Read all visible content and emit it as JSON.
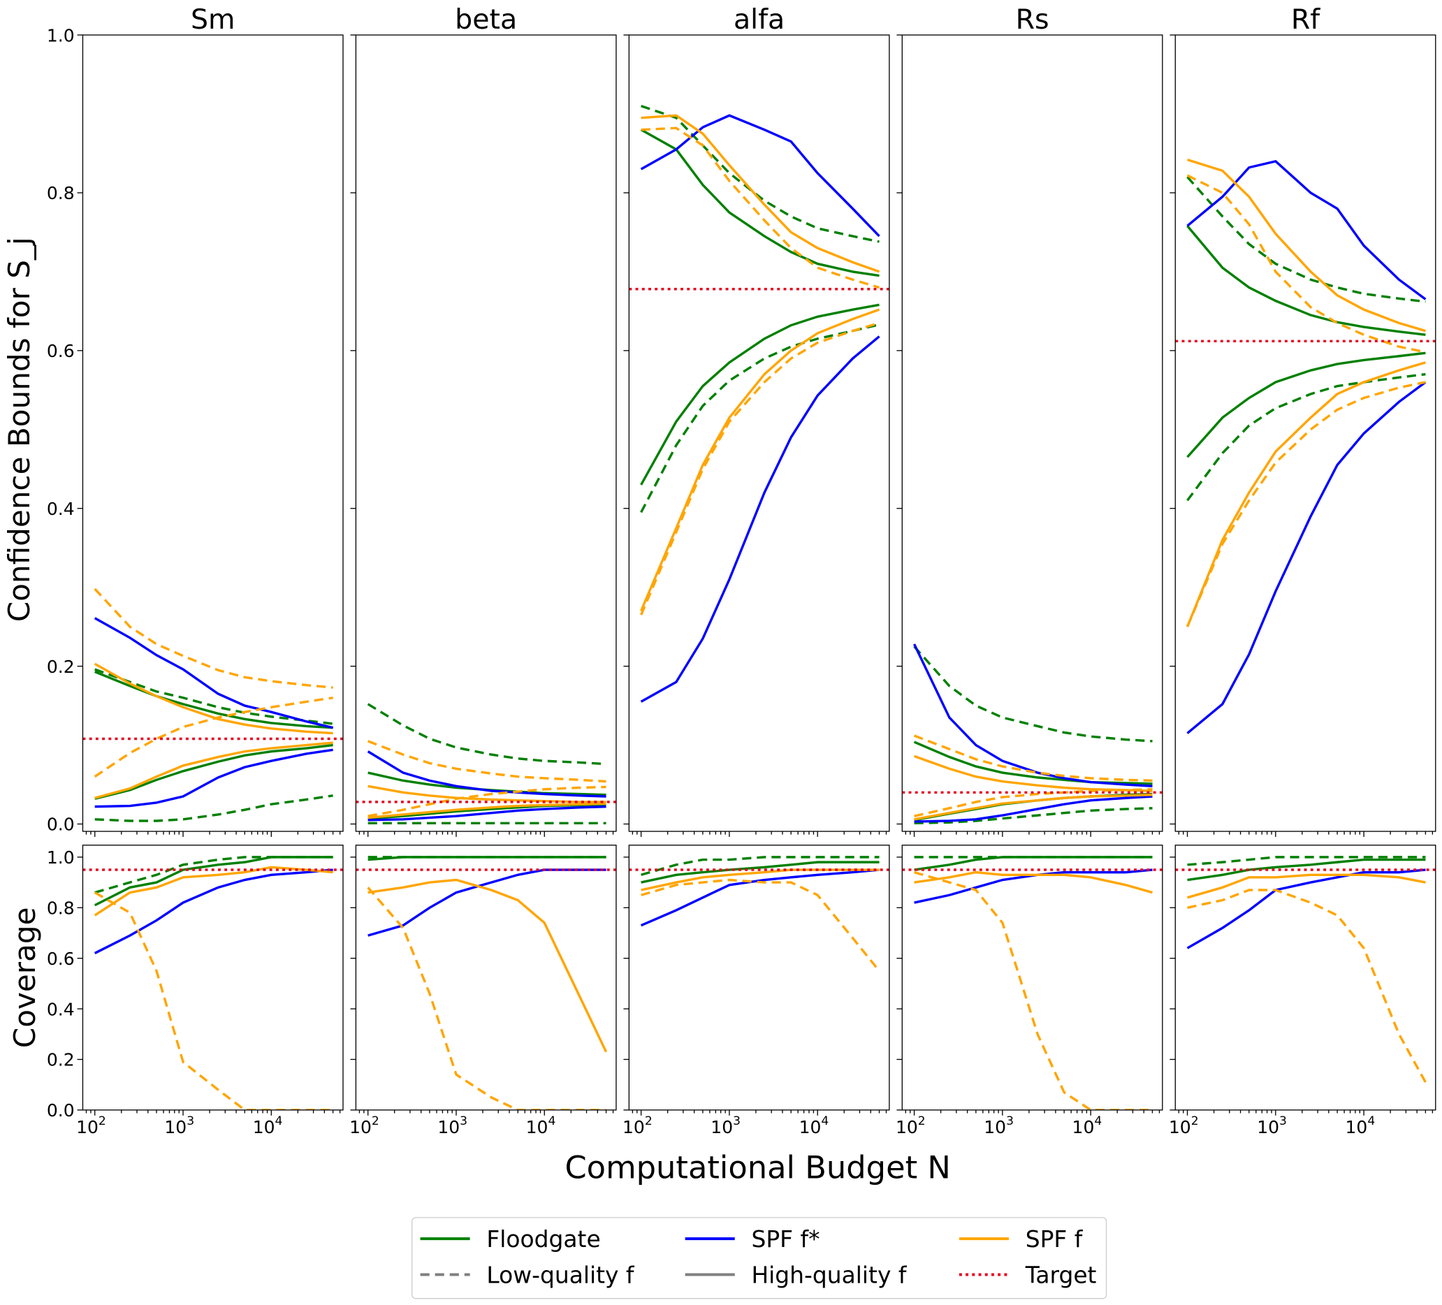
{
  "chart_data": {
    "type": "line",
    "xlabel": "Computational Budget N",
    "ylabel_top": "Confidence Bounds for S_j",
    "ylabel_bottom": "Coverage",
    "xscale": "log",
    "x": [
      100,
      250,
      500,
      1000,
      2500,
      5000,
      10000,
      25000,
      50000
    ],
    "xlim": [
      73,
      65000
    ],
    "xticks": [
      {
        "base": "10",
        "exp": "2"
      },
      {
        "base": "10",
        "exp": "3"
      },
      {
        "base": "10",
        "exp": "4"
      }
    ],
    "ylim_top": [
      0,
      1.0
    ],
    "yticks_top": [
      "0.0",
      "0.2",
      "0.4",
      "0.6",
      "0.8",
      "1.0"
    ],
    "ylim_bottom": [
      0,
      1.0
    ],
    "yticks_bottom": [
      "0.0",
      "0.2",
      "0.4",
      "0.6",
      "0.8",
      "1.0"
    ],
    "legend": {
      "placement": "bottom-center",
      "entries": [
        {
          "label": "Floodgate",
          "color": "#008000",
          "style": "solid"
        },
        {
          "label": "SPF f*",
          "color": "#0000ff",
          "style": "solid"
        },
        {
          "label": "SPF f",
          "color": "#ffa500",
          "style": "solid"
        },
        {
          "label": "Low-quality f",
          "color": "#808080",
          "style": "dashed"
        },
        {
          "label": "High-quality f",
          "color": "#808080",
          "style": "solid"
        },
        {
          "label": "Target",
          "color": "#e8001c",
          "style": "dotted"
        }
      ]
    },
    "series_styles": {
      "floodgate_high": {
        "color": "#008000",
        "dash": "solid"
      },
      "floodgate_low": {
        "color": "#008000",
        "dash": "dashed"
      },
      "spf_star_high": {
        "color": "#0000ff",
        "dash": "solid"
      },
      "spf_f_high": {
        "color": "#ffa500",
        "dash": "solid"
      },
      "spf_f_low": {
        "color": "#ffa500",
        "dash": "dashed"
      }
    },
    "target_coverage": 0.95,
    "panels": [
      {
        "title": "Sm",
        "target": 0.108,
        "bounds": {
          "floodgate_high": {
            "lower": [
              0.032,
              0.043,
              0.056,
              0.067,
              0.079,
              0.087,
              0.092,
              0.096,
              0.1
            ],
            "upper": [
              0.193,
              0.175,
              0.162,
              0.152,
              0.14,
              0.133,
              0.128,
              0.124,
              0.122
            ]
          },
          "floodgate_low": {
            "lower": [
              0.006,
              0.004,
              0.004,
              0.006,
              0.012,
              0.018,
              0.025,
              0.031,
              0.036
            ],
            "upper": [
              0.196,
              0.18,
              0.168,
              0.16,
              0.148,
              0.141,
              0.136,
              0.131,
              0.127
            ]
          },
          "spf_star_high": {
            "lower": [
              0.022,
              0.023,
              0.027,
              0.035,
              0.059,
              0.072,
              0.08,
              0.089,
              0.094
            ],
            "upper": [
              0.261,
              0.236,
              0.214,
              0.196,
              0.165,
              0.15,
              0.142,
              0.13,
              0.122
            ]
          },
          "spf_f_high": {
            "lower": [
              0.033,
              0.045,
              0.06,
              0.074,
              0.085,
              0.092,
              0.096,
              0.1,
              0.103
            ],
            "upper": [
              0.203,
              0.178,
              0.162,
              0.148,
              0.133,
              0.126,
              0.121,
              0.117,
              0.115
            ]
          },
          "spf_f_low": {
            "lower": [
              0.06,
              0.09,
              0.108,
              0.123,
              0.135,
              0.142,
              0.148,
              0.155,
              0.16
            ],
            "upper": [
              0.298,
              0.25,
              0.228,
              0.213,
              0.195,
              0.186,
              0.181,
              0.176,
              0.173
            ]
          }
        },
        "coverage": {
          "floodgate_high": [
            0.81,
            0.88,
            0.9,
            0.95,
            0.97,
            0.98,
            1.0,
            1.0,
            1.0
          ],
          "floodgate_low": [
            0.86,
            0.9,
            0.93,
            0.97,
            0.99,
            1.0,
            1.0,
            1.0,
            1.0
          ],
          "spf_star_high": [
            0.62,
            0.69,
            0.75,
            0.82,
            0.88,
            0.91,
            0.93,
            0.94,
            0.95
          ],
          "spf_f_high": [
            0.77,
            0.86,
            0.88,
            0.92,
            0.93,
            0.94,
            0.96,
            0.95,
            0.94
          ],
          "spf_f_low": [
            0.86,
            0.78,
            0.55,
            0.19,
            0.08,
            0.0,
            0.0,
            0.0,
            0.0
          ]
        }
      },
      {
        "title": "beta",
        "target": 0.028,
        "bounds": {
          "floodgate_high": {
            "lower": [
              0.007,
              0.01,
              0.013,
              0.016,
              0.019,
              0.021,
              0.023,
              0.024,
              0.025
            ],
            "upper": [
              0.065,
              0.055,
              0.05,
              0.046,
              0.043,
              0.041,
              0.039,
              0.038,
              0.037
            ]
          },
          "floodgate_low": {
            "lower": [
              0.001,
              0.001,
              0.001,
              0.001,
              0.001,
              0.001,
              0.001,
              0.001,
              0.001
            ],
            "upper": [
              0.152,
              0.125,
              0.108,
              0.097,
              0.088,
              0.083,
              0.08,
              0.078,
              0.076
            ]
          },
          "spf_star_high": {
            "lower": [
              0.005,
              0.006,
              0.008,
              0.01,
              0.014,
              0.017,
              0.019,
              0.021,
              0.022
            ],
            "upper": [
              0.092,
              0.065,
              0.055,
              0.048,
              0.042,
              0.04,
              0.038,
              0.036,
              0.035
            ]
          },
          "spf_f_high": {
            "lower": [
              0.008,
              0.012,
              0.015,
              0.018,
              0.021,
              0.023,
              0.024,
              0.025,
              0.026
            ],
            "upper": [
              0.048,
              0.04,
              0.036,
              0.033,
              0.031,
              0.03,
              0.029,
              0.028,
              0.028
            ]
          },
          "spf_f_low": {
            "lower": [
              0.01,
              0.018,
              0.025,
              0.032,
              0.038,
              0.041,
              0.044,
              0.046,
              0.047
            ],
            "upper": [
              0.105,
              0.088,
              0.077,
              0.07,
              0.064,
              0.06,
              0.058,
              0.056,
              0.054
            ]
          }
        },
        "coverage": {
          "floodgate_high": [
            0.99,
            1.0,
            1.0,
            1.0,
            1.0,
            1.0,
            1.0,
            1.0,
            1.0
          ],
          "floodgate_low": [
            1.0,
            1.0,
            1.0,
            1.0,
            1.0,
            1.0,
            1.0,
            1.0,
            1.0
          ],
          "spf_star_high": [
            0.69,
            0.73,
            0.8,
            0.86,
            0.9,
            0.93,
            0.95,
            0.95,
            0.95
          ],
          "spf_f_high": [
            0.86,
            0.88,
            0.9,
            0.91,
            0.87,
            0.83,
            0.74,
            0.45,
            0.23
          ],
          "spf_f_low": [
            0.88,
            0.72,
            0.46,
            0.14,
            0.05,
            0.0,
            0.0,
            0.0,
            0.0
          ]
        }
      },
      {
        "title": "alfa",
        "target": 0.678,
        "bounds": {
          "floodgate_high": {
            "lower": [
              0.43,
              0.51,
              0.555,
              0.585,
              0.615,
              0.632,
              0.643,
              0.652,
              0.658
            ],
            "upper": [
              0.88,
              0.855,
              0.81,
              0.775,
              0.745,
              0.725,
              0.71,
              0.7,
              0.695
            ]
          },
          "floodgate_low": {
            "lower": [
              0.395,
              0.48,
              0.53,
              0.562,
              0.59,
              0.605,
              0.615,
              0.625,
              0.633
            ],
            "upper": [
              0.91,
              0.895,
              0.86,
              0.825,
              0.79,
              0.77,
              0.755,
              0.745,
              0.738
            ]
          },
          "spf_star_high": {
            "lower": [
              0.155,
              0.18,
              0.235,
              0.31,
              0.42,
              0.49,
              0.543,
              0.59,
              0.618
            ],
            "upper": [
              0.83,
              0.855,
              0.883,
              0.898,
              0.88,
              0.865,
              0.825,
              0.78,
              0.745
            ]
          },
          "spf_f_high": {
            "lower": [
              0.27,
              0.375,
              0.455,
              0.515,
              0.57,
              0.6,
              0.622,
              0.64,
              0.652
            ],
            "upper": [
              0.895,
              0.898,
              0.875,
              0.835,
              0.785,
              0.75,
              0.73,
              0.712,
              0.7
            ]
          },
          "spf_f_low": {
            "lower": [
              0.265,
              0.37,
              0.45,
              0.51,
              0.56,
              0.59,
              0.61,
              0.625,
              0.635
            ],
            "upper": [
              0.88,
              0.882,
              0.86,
              0.815,
              0.765,
              0.73,
              0.705,
              0.69,
              0.68
            ]
          }
        },
        "coverage": {
          "floodgate_high": [
            0.9,
            0.93,
            0.94,
            0.95,
            0.96,
            0.97,
            0.98,
            0.98,
            0.98
          ],
          "floodgate_low": [
            0.93,
            0.97,
            0.99,
            0.99,
            1.0,
            1.0,
            1.0,
            1.0,
            1.0
          ],
          "spf_star_high": [
            0.73,
            0.79,
            0.84,
            0.89,
            0.91,
            0.92,
            0.93,
            0.94,
            0.95
          ],
          "spf_f_high": [
            0.87,
            0.9,
            0.92,
            0.93,
            0.94,
            0.95,
            0.95,
            0.95,
            0.95
          ],
          "spf_f_low": [
            0.85,
            0.89,
            0.9,
            0.91,
            0.9,
            0.9,
            0.85,
            0.68,
            0.55
          ]
        }
      },
      {
        "title": "Rs",
        "target": 0.04,
        "bounds": {
          "floodgate_high": {
            "lower": [
              0.005,
              0.013,
              0.019,
              0.025,
              0.03,
              0.033,
              0.035,
              0.037,
              0.038
            ],
            "upper": [
              0.104,
              0.085,
              0.073,
              0.065,
              0.059,
              0.056,
              0.053,
              0.052,
              0.051
            ]
          },
          "floodgate_low": {
            "lower": [
              0.001,
              0.002,
              0.004,
              0.007,
              0.011,
              0.014,
              0.017,
              0.019,
              0.02
            ],
            "upper": [
              0.225,
              0.175,
              0.15,
              0.135,
              0.124,
              0.116,
              0.111,
              0.107,
              0.105
            ]
          },
          "spf_star_high": {
            "lower": [
              0.003,
              0.004,
              0.006,
              0.011,
              0.019,
              0.025,
              0.03,
              0.033,
              0.035
            ],
            "upper": [
              0.228,
              0.135,
              0.1,
              0.08,
              0.065,
              0.058,
              0.053,
              0.05,
              0.048
            ]
          },
          "spf_f_high": {
            "lower": [
              0.006,
              0.014,
              0.02,
              0.026,
              0.03,
              0.033,
              0.035,
              0.036,
              0.037
            ],
            "upper": [
              0.086,
              0.07,
              0.06,
              0.054,
              0.049,
              0.046,
              0.044,
              0.043,
              0.042
            ]
          },
          "spf_f_low": {
            "lower": [
              0.01,
              0.02,
              0.028,
              0.034,
              0.038,
              0.04,
              0.042,
              0.043,
              0.044
            ],
            "upper": [
              0.112,
              0.095,
              0.082,
              0.073,
              0.065,
              0.061,
              0.058,
              0.056,
              0.055
            ]
          }
        },
        "coverage": {
          "floodgate_high": [
            0.95,
            0.97,
            0.99,
            1.0,
            1.0,
            1.0,
            1.0,
            1.0,
            1.0
          ],
          "floodgate_low": [
            1.0,
            1.0,
            1.0,
            1.0,
            1.0,
            1.0,
            1.0,
            1.0,
            1.0
          ],
          "spf_star_high": [
            0.82,
            0.85,
            0.88,
            0.91,
            0.93,
            0.94,
            0.94,
            0.94,
            0.95
          ],
          "spf_f_high": [
            0.9,
            0.92,
            0.94,
            0.93,
            0.93,
            0.93,
            0.92,
            0.89,
            0.86
          ],
          "spf_f_low": [
            0.94,
            0.9,
            0.87,
            0.74,
            0.3,
            0.07,
            0.0,
            0.0,
            0.0
          ]
        }
      },
      {
        "title": "Rf",
        "target": 0.612,
        "bounds": {
          "floodgate_high": {
            "lower": [
              0.465,
              0.515,
              0.54,
              0.56,
              0.575,
              0.583,
              0.588,
              0.593,
              0.597
            ],
            "upper": [
              0.758,
              0.705,
              0.68,
              0.663,
              0.645,
              0.636,
              0.63,
              0.624,
              0.62
            ]
          },
          "floodgate_low": {
            "lower": [
              0.41,
              0.47,
              0.505,
              0.527,
              0.545,
              0.555,
              0.56,
              0.566,
              0.57
            ],
            "upper": [
              0.82,
              0.77,
              0.735,
              0.71,
              0.69,
              0.68,
              0.672,
              0.666,
              0.662
            ]
          },
          "spf_star_high": {
            "lower": [
              0.115,
              0.152,
              0.215,
              0.295,
              0.39,
              0.455,
              0.495,
              0.535,
              0.56
            ],
            "upper": [
              0.758,
              0.795,
              0.832,
              0.84,
              0.8,
              0.78,
              0.733,
              0.69,
              0.665
            ]
          },
          "spf_f_high": {
            "lower": [
              0.25,
              0.36,
              0.42,
              0.472,
              0.515,
              0.545,
              0.56,
              0.575,
              0.585
            ],
            "upper": [
              0.842,
              0.828,
              0.795,
              0.748,
              0.7,
              0.67,
              0.652,
              0.635,
              0.625
            ]
          },
          "spf_f_low": {
            "lower": [
              0.25,
              0.355,
              0.41,
              0.458,
              0.5,
              0.525,
              0.54,
              0.553,
              0.56
            ],
            "upper": [
              0.822,
              0.8,
              0.76,
              0.7,
              0.655,
              0.635,
              0.62,
              0.605,
              0.598
            ]
          }
        },
        "coverage": {
          "floodgate_high": [
            0.91,
            0.93,
            0.95,
            0.96,
            0.97,
            0.98,
            0.99,
            0.99,
            0.99
          ],
          "floodgate_low": [
            0.97,
            0.98,
            0.99,
            1.0,
            1.0,
            1.0,
            1.0,
            1.0,
            1.0
          ],
          "spf_star_high": [
            0.64,
            0.72,
            0.79,
            0.87,
            0.9,
            0.92,
            0.94,
            0.94,
            0.95
          ],
          "spf_f_high": [
            0.84,
            0.88,
            0.92,
            0.92,
            0.93,
            0.93,
            0.93,
            0.92,
            0.9
          ],
          "spf_f_low": [
            0.8,
            0.83,
            0.87,
            0.87,
            0.82,
            0.77,
            0.64,
            0.3,
            0.11
          ]
        }
      }
    ]
  }
}
